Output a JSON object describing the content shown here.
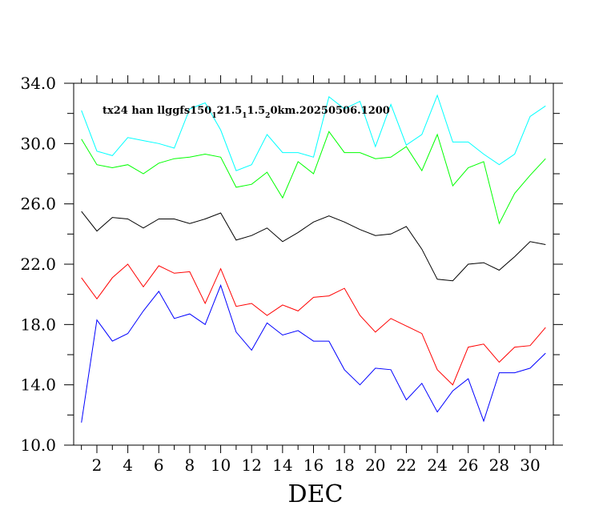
{
  "chart_data": {
    "type": "line",
    "title": "tx24 han llggfs150_1 21.5_1 1.5_2 0km.20250506.1200",
    "title_parts": [
      {
        "text": "tx24 han llggfs150",
        "sub": false
      },
      {
        "text": "1",
        "sub": true
      },
      {
        "text": "21.5",
        "sub": false
      },
      {
        "text": "1",
        "sub": true
      },
      {
        "text": "1.5",
        "sub": false
      },
      {
        "text": "2",
        "sub": true
      },
      {
        "text": "0km.20250506.1200",
        "sub": false
      }
    ],
    "xlabel": "DEC",
    "ylabel": "",
    "xlim": [
      0.5,
      31.5
    ],
    "ylim": [
      10,
      34
    ],
    "x_ticks": [
      2,
      4,
      6,
      8,
      10,
      12,
      14,
      16,
      18,
      20,
      22,
      24,
      26,
      28,
      30
    ],
    "x_tick_labels": [
      "2",
      "4",
      "6",
      "8",
      "10",
      "12",
      "14",
      "16",
      "18",
      "20",
      "22",
      "24",
      "26",
      "28",
      "30"
    ],
    "y_ticks": [
      10,
      14,
      18,
      22,
      26,
      30,
      34
    ],
    "y_tick_labels": [
      "10.0",
      "14.0",
      "18.0",
      "22.0",
      "26.0",
      "30.0",
      "34.0"
    ],
    "grid": false,
    "x": [
      1,
      2,
      3,
      4,
      5,
      6,
      7,
      8,
      9,
      10,
      11,
      12,
      13,
      14,
      15,
      16,
      17,
      18,
      19,
      20,
      21,
      22,
      23,
      24,
      25,
      26,
      27,
      28,
      29,
      30,
      31
    ],
    "series": [
      {
        "color": "#00ffff",
        "values": [
          32.2,
          29.5,
          29.2,
          30.4,
          30.2,
          30.0,
          29.7,
          32.3,
          32.7,
          30.9,
          28.2,
          28.6,
          30.6,
          29.4,
          29.4,
          29.1,
          33.1,
          32.3,
          32.8,
          29.8,
          32.6,
          29.9,
          30.6,
          33.2,
          30.1,
          30.1,
          29.3,
          28.6,
          29.3,
          31.8,
          32.5
        ]
      },
      {
        "color": "#00ff00",
        "values": [
          30.3,
          28.6,
          28.4,
          28.6,
          28.0,
          28.7,
          29.0,
          29.1,
          29.3,
          29.1,
          27.1,
          27.3,
          28.1,
          26.4,
          28.8,
          28.0,
          30.8,
          29.4,
          29.4,
          29.0,
          29.1,
          29.8,
          28.2,
          30.6,
          27.2,
          28.4,
          28.8,
          24.7,
          26.7,
          27.9,
          29.0
        ]
      },
      {
        "color": "#000000",
        "values": [
          25.5,
          24.2,
          25.1,
          25.0,
          24.4,
          25.0,
          25.0,
          24.7,
          25.0,
          25.4,
          23.6,
          23.9,
          24.4,
          23.5,
          24.1,
          24.8,
          25.2,
          24.8,
          24.3,
          23.9,
          24.0,
          24.5,
          23.0,
          21.0,
          20.9,
          22.0,
          22.1,
          21.6,
          22.5,
          23.5,
          23.3
        ]
      },
      {
        "color": "#ff0000",
        "values": [
          21.1,
          19.7,
          21.1,
          22.0,
          20.5,
          21.9,
          21.4,
          21.5,
          19.4,
          21.7,
          19.2,
          19.4,
          18.6,
          19.3,
          18.9,
          19.8,
          19.9,
          20.4,
          18.6,
          17.5,
          18.4,
          17.9,
          17.4,
          15.0,
          14.0,
          16.5,
          16.7,
          15.5,
          16.5,
          16.6,
          17.8
        ]
      },
      {
        "color": "#0000ff",
        "values": [
          11.5,
          18.3,
          16.9,
          17.4,
          18.9,
          20.2,
          18.4,
          18.7,
          18.0,
          20.6,
          17.5,
          16.3,
          18.1,
          17.3,
          17.6,
          16.9,
          16.9,
          15.0,
          14.0,
          15.1,
          15.0,
          13.0,
          14.1,
          12.2,
          13.6,
          14.4,
          11.6,
          14.8,
          14.8,
          15.1,
          16.1
        ]
      }
    ]
  }
}
